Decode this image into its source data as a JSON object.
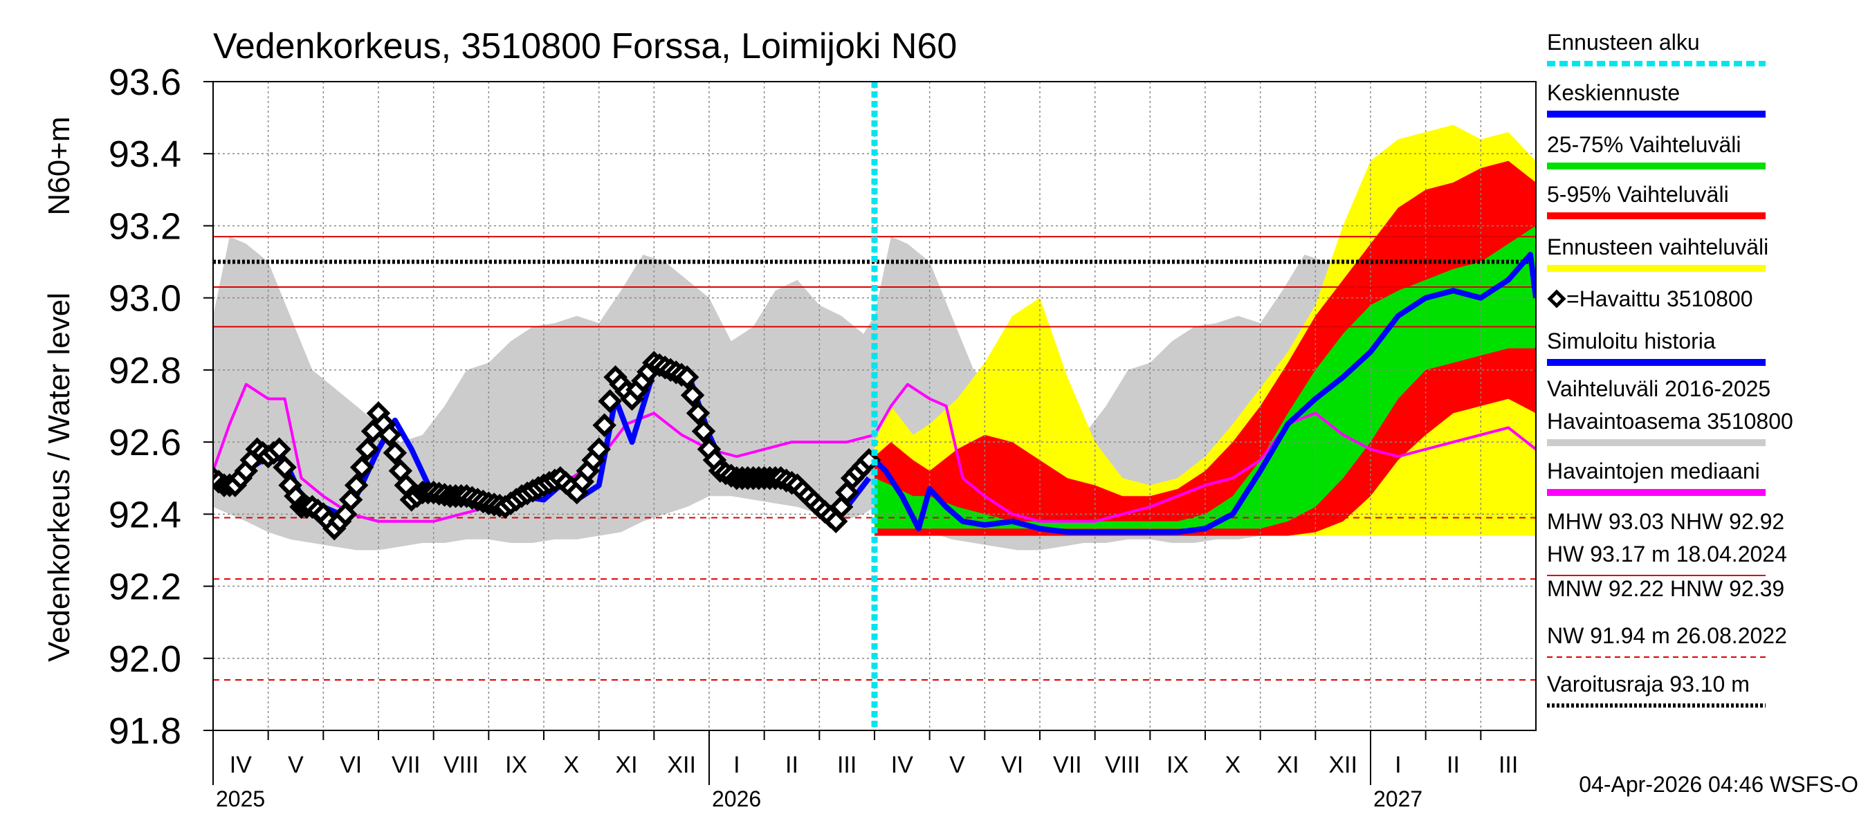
{
  "chart_data": {
    "type": "area",
    "title": "Vedenkorkeus, 3510800 Forssa, Loimijoki N60",
    "ylabel_top": "N60+m",
    "ylabel": "Vedenkorkeus / Water level",
    "ylim": [
      91.8,
      93.6
    ],
    "yticks": [
      "93.6",
      "93.4",
      "93.2",
      "93.0",
      "92.8",
      "92.6",
      "92.4",
      "92.2",
      "92.0",
      "91.8"
    ],
    "months": [
      "IV",
      "V",
      "VI",
      "VII",
      "VIII",
      "IX",
      "X",
      "XI",
      "XII",
      "I",
      "II",
      "III",
      "IV",
      "V",
      "VI",
      "VII",
      "VIII",
      "IX",
      "X",
      "XI",
      "XII",
      "I",
      "II",
      "III"
    ],
    "years": [
      "2025",
      "2026",
      "2027"
    ],
    "forecast_start_index": 12,
    "reference_lines": [
      {
        "label": "HW",
        "value": 93.17,
        "style": "solid",
        "color": "#e00000"
      },
      {
        "label": "Varoitusraja",
        "value": 93.1,
        "style": "dotted",
        "color": "#000000"
      },
      {
        "label": "MHW",
        "value": 93.03,
        "style": "solid",
        "color": "#e00000"
      },
      {
        "label": "NHW",
        "value": 92.92,
        "style": "solid",
        "color": "#e00000"
      },
      {
        "label": "HNW",
        "value": 92.39,
        "style": "dashed",
        "color": "#e00000"
      },
      {
        "label": "MNW",
        "value": 92.22,
        "style": "dashed",
        "color": "#e00000"
      },
      {
        "label": "NW",
        "value": 91.94,
        "style": "dashed",
        "color": "#e00000"
      }
    ],
    "series": [
      {
        "name": "Vaihteluväli 2016-2025 Havaintoasema 3510800",
        "color": "#cccccc",
        "t": [
          0,
          0.3,
          0.6,
          1,
          1.4,
          1.8,
          2.2,
          2.6,
          3,
          3.4,
          3.8,
          4.2,
          4.6,
          5,
          5.4,
          5.8,
          6.2,
          6.6,
          7,
          7.4,
          7.8,
          8.2,
          8.6,
          9,
          9.4,
          9.8,
          10.2,
          10.6,
          11,
          11.4,
          11.8,
          12,
          12.3,
          12.6,
          13,
          13.4,
          13.8,
          14.2,
          14.6,
          15,
          15.4,
          15.8,
          16.2,
          16.6,
          17,
          17.4,
          17.8,
          18.2,
          18.6,
          19,
          19.4,
          19.8,
          20.2,
          20.6,
          21,
          21.4,
          21.8,
          22.2,
          22.6,
          23,
          23.4,
          23.8,
          24
        ],
        "upper": [
          92.95,
          93.17,
          93.15,
          93.1,
          92.95,
          92.8,
          92.75,
          92.7,
          92.65,
          92.6,
          92.62,
          92.7,
          92.8,
          92.82,
          92.88,
          92.92,
          92.93,
          92.95,
          92.93,
          93.02,
          93.12,
          93.1,
          93.05,
          93.0,
          92.88,
          92.92,
          93.02,
          93.05,
          92.98,
          92.95,
          92.9,
          92.95,
          93.17,
          93.15,
          93.1,
          92.95,
          92.8,
          92.75,
          92.7,
          92.65,
          92.6,
          92.62,
          92.7,
          92.8,
          92.82,
          92.88,
          92.92,
          92.93,
          92.95,
          92.93,
          93.02,
          93.12,
          93.1,
          93.05,
          93.0,
          92.88,
          92.92,
          93.02,
          93.05,
          92.98,
          92.95,
          92.9,
          92.95
        ],
        "lower": [
          92.42,
          92.4,
          92.38,
          92.35,
          92.33,
          92.32,
          92.31,
          92.3,
          92.3,
          92.31,
          92.32,
          92.32,
          92.33,
          92.33,
          92.32,
          92.32,
          92.33,
          92.33,
          92.34,
          92.35,
          92.38,
          92.4,
          92.42,
          92.45,
          92.45,
          92.44,
          92.43,
          92.42,
          92.4,
          92.38,
          92.4,
          92.42,
          92.4,
          92.38,
          92.35,
          92.33,
          92.32,
          92.31,
          92.3,
          92.3,
          92.31,
          92.32,
          92.32,
          92.33,
          92.33,
          92.32,
          92.32,
          92.33,
          92.33,
          92.34,
          92.35,
          92.38,
          92.4,
          92.42,
          92.45,
          92.45,
          92.44,
          92.43,
          92.42,
          92.4,
          92.38,
          92.4,
          92.42
        ]
      },
      {
        "name": "Ennusteen vaihteluväli",
        "color": "#ffff00",
        "t": [
          12,
          12.3,
          12.7,
          13,
          13.5,
          14,
          14.5,
          15,
          15.5,
          16,
          16.5,
          17,
          17.5,
          18,
          18.5,
          19,
          19.5,
          20,
          20.5,
          21,
          21.5,
          22,
          22.5,
          23,
          23.5,
          24
        ],
        "upper": [
          92.6,
          92.7,
          92.62,
          92.65,
          92.72,
          92.82,
          92.95,
          93.0,
          92.78,
          92.6,
          92.5,
          92.48,
          92.5,
          92.56,
          92.65,
          92.75,
          92.85,
          92.98,
          93.2,
          93.38,
          93.44,
          93.46,
          93.48,
          93.44,
          93.46,
          93.38
        ],
        "lower": [
          92.34,
          92.34,
          92.34,
          92.34,
          92.34,
          92.34,
          92.34,
          92.34,
          92.34,
          92.34,
          92.34,
          92.34,
          92.34,
          92.34,
          92.34,
          92.34,
          92.34,
          92.34,
          92.34,
          92.34,
          92.34,
          92.34,
          92.34,
          92.34,
          92.34,
          92.34
        ]
      },
      {
        "name": "5-95% Vaihteluväli",
        "color": "#ff0000",
        "t": [
          12,
          12.3,
          12.7,
          13,
          13.5,
          14,
          14.5,
          15,
          15.5,
          16,
          16.5,
          17,
          17.5,
          18,
          18.5,
          19,
          19.5,
          20,
          20.5,
          21,
          21.5,
          22,
          22.5,
          23,
          23.5,
          24
        ],
        "upper": [
          92.56,
          92.6,
          92.55,
          92.52,
          92.58,
          92.62,
          92.6,
          92.55,
          92.5,
          92.48,
          92.45,
          92.45,
          92.47,
          92.52,
          92.6,
          92.7,
          92.82,
          92.95,
          93.05,
          93.15,
          93.25,
          93.3,
          93.32,
          93.36,
          93.38,
          93.32
        ],
        "lower": [
          92.34,
          92.34,
          92.34,
          92.34,
          92.34,
          92.34,
          92.34,
          92.34,
          92.34,
          92.34,
          92.34,
          92.34,
          92.34,
          92.34,
          92.34,
          92.34,
          92.34,
          92.35,
          92.38,
          92.45,
          92.55,
          92.62,
          92.68,
          92.7,
          92.72,
          92.68
        ]
      },
      {
        "name": "25-75% Vaihteluväli",
        "color": "#00e000",
        "t": [
          12,
          12.3,
          12.7,
          13,
          13.5,
          14,
          14.5,
          15,
          15.5,
          16,
          16.5,
          17,
          17.5,
          18,
          18.5,
          19,
          19.5,
          20,
          20.5,
          21,
          21.5,
          22,
          22.5,
          23,
          23.5,
          24
        ],
        "upper": [
          92.5,
          92.48,
          92.45,
          92.45,
          92.42,
          92.4,
          92.38,
          92.38,
          92.38,
          92.38,
          92.38,
          92.38,
          92.38,
          92.4,
          92.45,
          92.55,
          92.68,
          92.8,
          92.9,
          92.98,
          93.02,
          93.05,
          93.08,
          93.1,
          93.15,
          93.2
        ],
        "lower": [
          92.36,
          92.36,
          92.36,
          92.36,
          92.36,
          92.36,
          92.36,
          92.36,
          92.36,
          92.36,
          92.36,
          92.36,
          92.36,
          92.36,
          92.36,
          92.36,
          92.38,
          92.42,
          92.5,
          92.6,
          92.72,
          92.8,
          92.82,
          92.84,
          92.86,
          92.86
        ]
      },
      {
        "name": "Simuloitu historia",
        "color": "#0000ff",
        "t": [
          0,
          0.3,
          0.6,
          1,
          1.3,
          1.6,
          2,
          2.3,
          2.6,
          3,
          3.3,
          3.6,
          4,
          4.3,
          4.6,
          5,
          5.3,
          5.6,
          6,
          6.3,
          6.6,
          7,
          7.3,
          7.6,
          8,
          8.3,
          8.6,
          9,
          9.3,
          9.6,
          10,
          10.3,
          10.6,
          11,
          11.3,
          11.6,
          11.9
        ],
        "values": [
          92.5,
          92.48,
          92.52,
          92.56,
          92.55,
          92.45,
          92.42,
          92.4,
          92.45,
          92.58,
          92.66,
          92.58,
          92.45,
          92.44,
          92.44,
          92.44,
          92.42,
          92.45,
          92.44,
          92.48,
          92.44,
          92.48,
          92.72,
          92.6,
          92.8,
          92.78,
          92.8,
          92.62,
          92.52,
          92.5,
          92.5,
          92.5,
          92.46,
          92.4,
          92.38,
          92.44,
          92.5
        ]
      },
      {
        "name": "Keskiennuste",
        "color": "#0000ff",
        "t": [
          12,
          12.2,
          12.5,
          12.8,
          13,
          13.3,
          13.6,
          14,
          14.5,
          15,
          15.5,
          16,
          16.5,
          17,
          17.5,
          18,
          18.5,
          19,
          19.5,
          20,
          20.5,
          21,
          21.5,
          22,
          22.5,
          23,
          23.5,
          23.9,
          24
        ],
        "values": [
          92.55,
          92.52,
          92.45,
          92.36,
          92.47,
          92.42,
          92.38,
          92.37,
          92.38,
          92.36,
          92.35,
          92.35,
          92.35,
          92.35,
          92.35,
          92.36,
          92.4,
          92.52,
          92.65,
          92.72,
          92.78,
          92.85,
          92.95,
          93.0,
          93.02,
          93.0,
          93.05,
          93.12,
          93.0
        ]
      },
      {
        "name": "Havaintojen mediaani",
        "color": "#ff00ff",
        "t": [
          0,
          0.3,
          0.6,
          1,
          1.3,
          1.6,
          2,
          2.5,
          3,
          3.5,
          4,
          4.5,
          5,
          5.5,
          6,
          6.5,
          7,
          7.5,
          8,
          8.5,
          9,
          9.5,
          10,
          10.5,
          11,
          11.5,
          12,
          12.3,
          12.6,
          13,
          13.3,
          13.6,
          14,
          14.5,
          15,
          15.5,
          16,
          16.5,
          17,
          17.5,
          18,
          18.5,
          19,
          19.5,
          20,
          20.5,
          21,
          21.5,
          22,
          22.5,
          23,
          23.5,
          24
        ],
        "values": [
          92.52,
          92.65,
          92.76,
          92.72,
          92.72,
          92.5,
          92.45,
          92.4,
          92.38,
          92.38,
          92.38,
          92.4,
          92.42,
          92.45,
          92.48,
          92.5,
          92.55,
          92.65,
          92.68,
          92.62,
          92.58,
          92.56,
          92.58,
          92.6,
          92.6,
          92.6,
          92.62,
          92.7,
          92.76,
          92.72,
          92.7,
          92.5,
          92.45,
          92.4,
          92.38,
          92.38,
          92.38,
          92.4,
          92.42,
          92.45,
          92.48,
          92.5,
          92.55,
          92.65,
          92.68,
          92.62,
          92.58,
          92.56,
          92.58,
          92.6,
          92.62,
          92.64,
          92.58
        ]
      },
      {
        "name": "Havaittu 3510800",
        "color": "#000000",
        "t": [
          0,
          0.2,
          0.4,
          0.6,
          0.8,
          1,
          1.2,
          1.4,
          1.6,
          1.8,
          2,
          2.2,
          2.4,
          2.6,
          2.8,
          3,
          3.2,
          3.4,
          3.6,
          3.8,
          4,
          4.3,
          4.6,
          5,
          5.3,
          5.6,
          6,
          6.3,
          6.6,
          7,
          7.3,
          7.6,
          8,
          8.3,
          8.6,
          9,
          9.2,
          9.5,
          9.8,
          10,
          10.3,
          10.6,
          11,
          11.3,
          11.6,
          11.9
        ],
        "values": [
          92.5,
          92.48,
          92.48,
          92.52,
          92.58,
          92.56,
          92.58,
          92.48,
          92.42,
          92.42,
          92.4,
          92.36,
          92.4,
          92.48,
          92.58,
          92.68,
          92.62,
          92.52,
          92.44,
          92.46,
          92.46,
          92.45,
          92.45,
          92.43,
          92.42,
          92.45,
          92.48,
          92.5,
          92.46,
          92.58,
          92.78,
          92.72,
          92.82,
          92.8,
          92.78,
          92.58,
          92.52,
          92.5,
          92.5,
          92.5,
          92.5,
          92.48,
          92.42,
          92.38,
          92.5,
          92.55
        ]
      }
    ],
    "legend": [
      {
        "label": "Ennusteen alku",
        "kind": "dotted",
        "color": "#00e5ee"
      },
      {
        "label": "Keskiennuste",
        "kind": "line",
        "color": "#0000ff"
      },
      {
        "label": "25-75% Vaihteluväli",
        "kind": "line",
        "color": "#00e000"
      },
      {
        "label": "5-95% Vaihteluväli",
        "kind": "line",
        "color": "#ff0000"
      },
      {
        "label": "Ennusteen vaihteluväli",
        "kind": "line",
        "color": "#ffff00"
      },
      {
        "label": "=Havaittu 3510800",
        "kind": "marker",
        "color": "#000000"
      },
      {
        "label": "Simuloitu historia",
        "kind": "line",
        "color": "#0000ff"
      },
      {
        "label": "Vaihteluväli 2016-2025",
        "kind": "text",
        "color": "#000000"
      },
      {
        "label": "Havaintoasema 3510800",
        "kind": "line",
        "color": "#cccccc"
      },
      {
        "label": "Havaintojen mediaani",
        "kind": "line",
        "color": "#ff00ff"
      },
      {
        "label": "MHW  93.03 NHW  92.92",
        "kind": "text",
        "color": "#000000"
      },
      {
        "label": "HW  93.17 m 18.04.2024",
        "kind": "thin",
        "color": "#e00000"
      },
      {
        "label": "MNW  92.22 HNW  92.39",
        "kind": "text",
        "color": "#000000"
      },
      {
        "label": "NW  91.94 m 26.08.2022",
        "kind": "dashed",
        "color": "#e00000"
      },
      {
        "label": "Varoitusraja 93.10 m",
        "kind": "dotted",
        "color": "#000000"
      }
    ],
    "footer": "04-Apr-2026 04:46 WSFS-O"
  }
}
